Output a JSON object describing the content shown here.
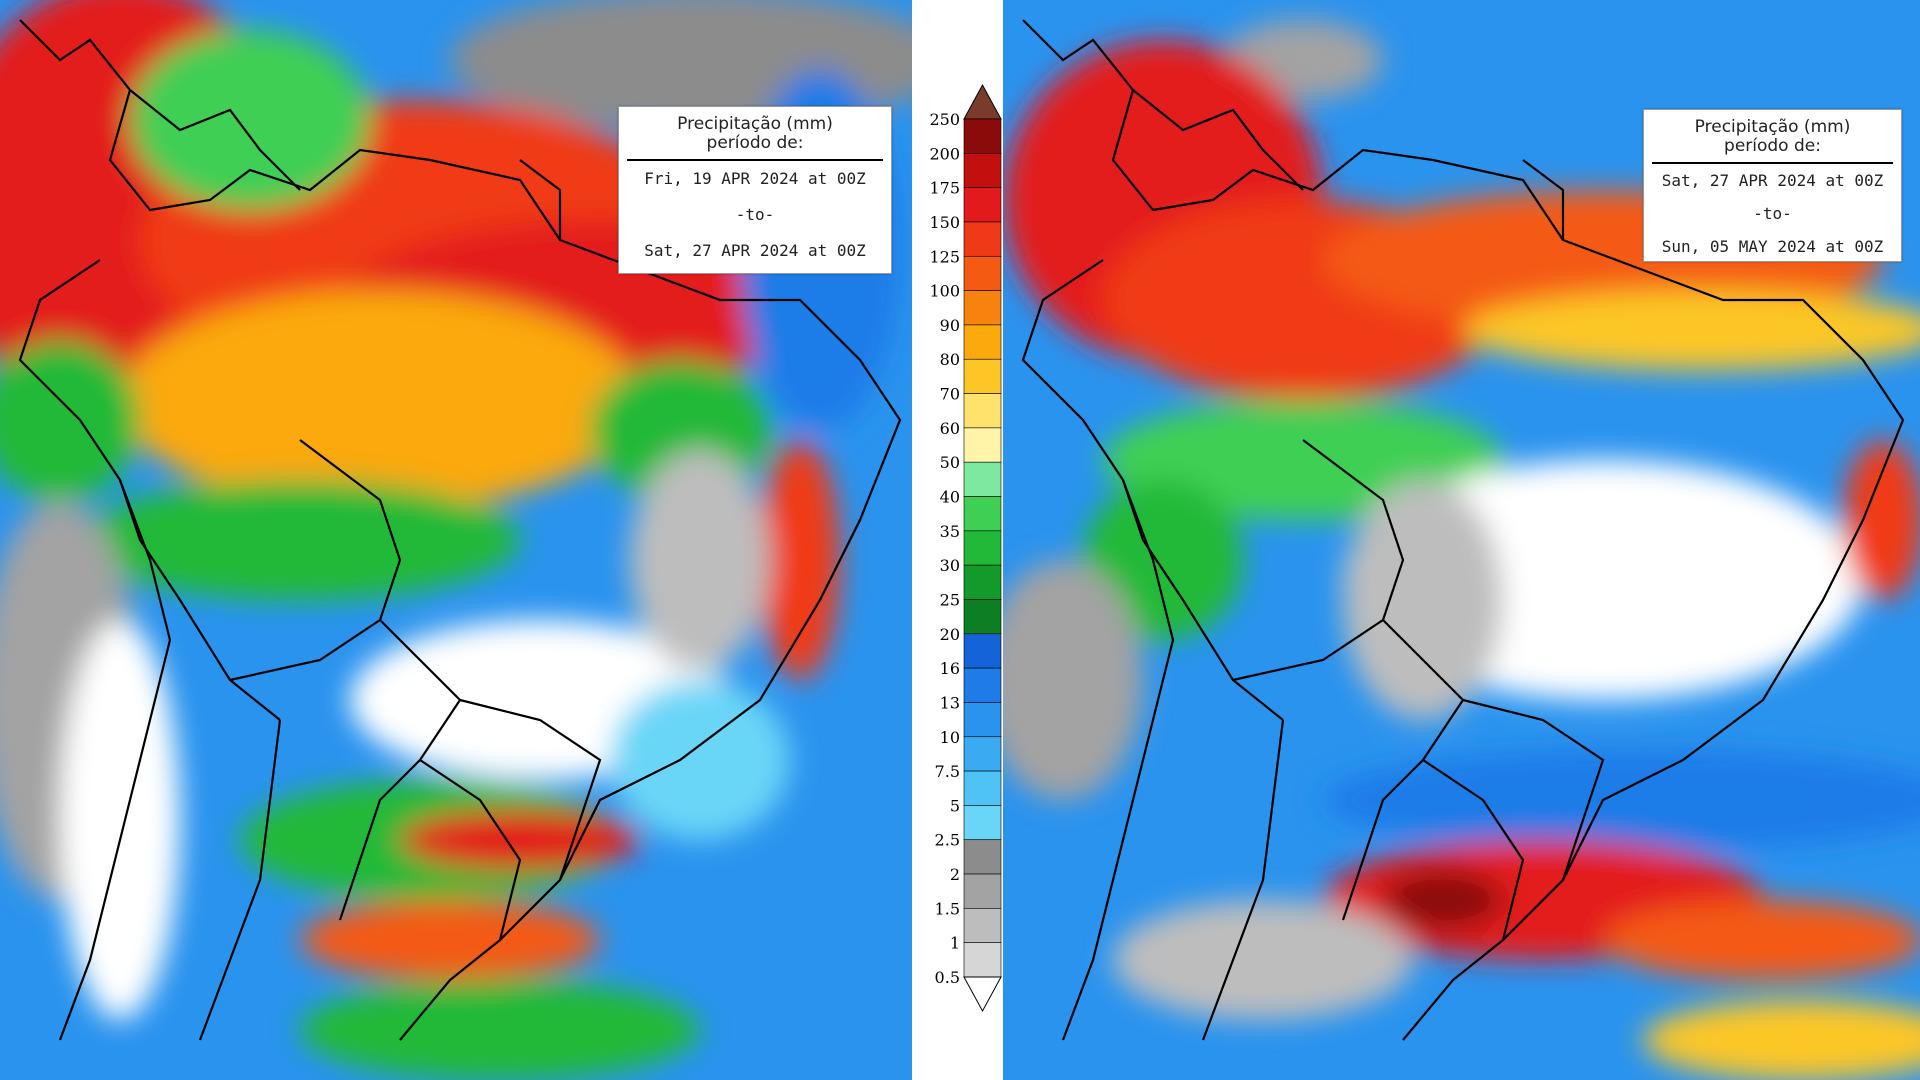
{
  "maps": [
    {
      "title_line1": "Precipitação (mm)",
      "title_line2": "período de:",
      "start": "Fri, 19 APR 2024 at 00Z",
      "separator": "-to-",
      "end": "Sat, 27 APR 2024 at 00Z"
    },
    {
      "title_line1": "Precipitação (mm)",
      "title_line2": "período de:",
      "start": "Sat, 27 APR 2024 at 00Z",
      "separator": "-to-",
      "end": "Sun, 05 MAY 2024 at 00Z"
    }
  ],
  "colorbar": {
    "levels": [
      "250",
      "200",
      "175",
      "150",
      "125",
      "100",
      "90",
      "80",
      "70",
      "60",
      "50",
      "40",
      "35",
      "30",
      "25",
      "20",
      "16",
      "13",
      "10",
      "7.5",
      "5",
      "2.5",
      "2",
      "1.5",
      "1",
      "0.5"
    ],
    "colors": [
      "#8b0a0a",
      "#c40f0f",
      "#e31a1c",
      "#f03a17",
      "#f45a12",
      "#f7830f",
      "#fba90d",
      "#fcc726",
      "#fde36b",
      "#fff4a8",
      "#7ee8a0",
      "#3fcf55",
      "#22b938",
      "#139a2a",
      "#0c7e23",
      "#1463d8",
      "#1e7be8",
      "#2a93ee",
      "#3aaaf2",
      "#4fc3f6",
      "#6ad6f7",
      "#8c8c8c",
      "#a3a3a3",
      "#bdbdbd",
      "#d6d6d6",
      "#ffffff"
    ],
    "top_color": "#7a3a2c"
  }
}
